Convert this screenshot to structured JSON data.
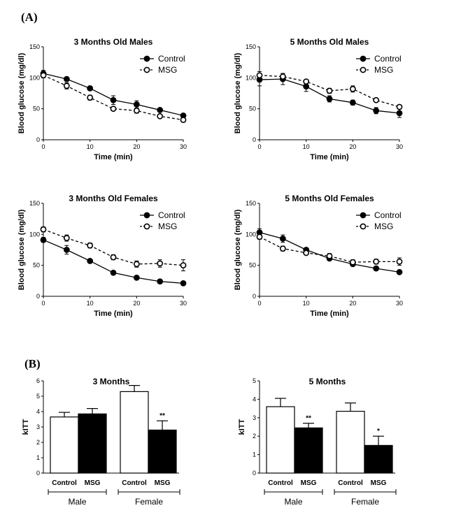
{
  "panel_labels": {
    "a": "(A)",
    "b": "(B)"
  },
  "chart_data": [
    {
      "type": "line",
      "title": "3 Months Old Males",
      "xlabel": "Time (min)",
      "ylabel": "Blood glucose (mg/dl)",
      "xlim": [
        0,
        30
      ],
      "ylim": [
        0,
        150
      ],
      "xticks": [
        0,
        10,
        20,
        30
      ],
      "yticks": [
        0,
        50,
        100,
        150
      ],
      "legend": "top-right",
      "x": [
        0,
        5,
        10,
        15,
        20,
        25,
        30
      ],
      "series": [
        {
          "name": "Control",
          "values": [
            107,
            98,
            83,
            64,
            57,
            48,
            39
          ],
          "errors": [
            5,
            3,
            2,
            7,
            6,
            2,
            2
          ]
        },
        {
          "name": "MSG",
          "values": [
            104,
            87,
            68,
            50,
            47,
            38,
            32
          ],
          "errors": [
            4,
            5,
            4,
            3,
            4,
            2,
            2
          ]
        }
      ]
    },
    {
      "type": "line",
      "title": "5 Months Old Males",
      "xlabel": "Time (min)",
      "ylabel": "Blood glucose (mg/dl)",
      "xlim": [
        0,
        30
      ],
      "ylim": [
        0,
        150
      ],
      "xticks": [
        0,
        10,
        20,
        30
      ],
      "yticks": [
        0,
        50,
        100,
        150
      ],
      "legend": "top-right",
      "x": [
        0,
        5,
        10,
        15,
        20,
        25,
        30
      ],
      "series": [
        {
          "name": "Control",
          "values": [
            97,
            98,
            86,
            66,
            60,
            47,
            43
          ],
          "errors": [
            10,
            9,
            8,
            5,
            4,
            5,
            7
          ]
        },
        {
          "name": "MSG",
          "values": [
            104,
            102,
            94,
            79,
            82,
            64,
            53
          ],
          "errors": [
            6,
            5,
            3,
            4,
            5,
            3,
            3
          ]
        }
      ]
    },
    {
      "type": "line",
      "title": "3 Months Old Females",
      "xlabel": "Time (min)",
      "ylabel": "Blood glucose (mg/dl)",
      "xlim": [
        0,
        30
      ],
      "ylim": [
        0,
        150
      ],
      "xticks": [
        0,
        10,
        20,
        30
      ],
      "yticks": [
        0,
        50,
        100,
        150
      ],
      "legend": "top-right",
      "x": [
        0,
        5,
        10,
        15,
        20,
        25,
        30
      ],
      "series": [
        {
          "name": "Control",
          "values": [
            91,
            75,
            57,
            38,
            30,
            24,
            21
          ],
          "errors": [
            4,
            7,
            2,
            2,
            2,
            2,
            2
          ]
        },
        {
          "name": "MSG",
          "values": [
            108,
            94,
            82,
            63,
            52,
            53,
            50
          ],
          "errors": [
            4,
            5,
            4,
            4,
            5,
            6,
            9
          ]
        }
      ]
    },
    {
      "type": "line",
      "title": "5 Months Old Females",
      "xlabel": "Time (min)",
      "ylabel": "Blood glucose (mg/dl)",
      "xlim": [
        0,
        30
      ],
      "ylim": [
        0,
        150
      ],
      "xticks": [
        0,
        10,
        20,
        30
      ],
      "yticks": [
        0,
        50,
        100,
        150
      ],
      "legend": "top-right",
      "x": [
        0,
        5,
        10,
        15,
        20,
        25,
        30
      ],
      "series": [
        {
          "name": "Control",
          "values": [
            103,
            93,
            75,
            61,
            52,
            45,
            39
          ],
          "errors": [
            6,
            6,
            2,
            2,
            2,
            2,
            2
          ]
        },
        {
          "name": "MSG",
          "values": [
            96,
            77,
            70,
            65,
            55,
            56,
            56
          ],
          "errors": [
            4,
            4,
            3,
            4,
            4,
            4,
            6
          ]
        }
      ]
    },
    {
      "type": "bar",
      "title": "3 Months",
      "ylabel": "kITT",
      "ylim": [
        0,
        6
      ],
      "yticks": [
        0,
        1,
        2,
        3,
        4,
        5,
        6
      ],
      "categories": [
        "Control",
        "MSG",
        "Control",
        "MSG"
      ],
      "groups": [
        "Male",
        "Female"
      ],
      "values": [
        3.65,
        3.85,
        5.3,
        2.8
      ],
      "errors": [
        0.3,
        0.35,
        0.4,
        0.6
      ],
      "fills": [
        "#ffffff",
        "#000000",
        "#ffffff",
        "#000000"
      ],
      "significance": [
        "",
        "",
        "",
        "**"
      ]
    },
    {
      "type": "bar",
      "title": "5 Months",
      "ylabel": "kITT",
      "ylim": [
        0,
        5
      ],
      "yticks": [
        0,
        1,
        2,
        3,
        4,
        5
      ],
      "categories": [
        "Control",
        "MSG",
        "Control",
        "MSG"
      ],
      "groups": [
        "Male",
        "Female"
      ],
      "values": [
        3.6,
        2.45,
        3.35,
        1.5
      ],
      "errors": [
        0.45,
        0.25,
        0.45,
        0.5
      ],
      "fills": [
        "#ffffff",
        "#000000",
        "#ffffff",
        "#000000"
      ],
      "significance": [
        "",
        "**",
        "",
        "*"
      ]
    }
  ]
}
